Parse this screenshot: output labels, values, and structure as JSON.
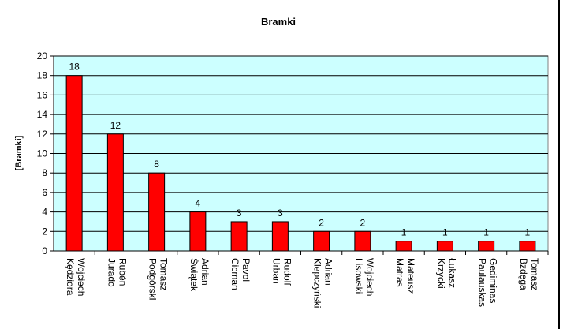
{
  "chart_data": {
    "type": "bar",
    "title": "Bramki",
    "ylabel": "[Bramki]",
    "xlabel": "",
    "ylim": [
      0,
      20
    ],
    "y_ticks": [
      0,
      2,
      4,
      6,
      8,
      10,
      12,
      14,
      16,
      18,
      20
    ],
    "grid": true,
    "legend": "none",
    "categories": [
      [
        "Wojciech",
        "Kędziora"
      ],
      [
        "Rubén",
        "Jurado"
      ],
      [
        "Tomasz",
        "Podgórski"
      ],
      [
        "Adrian",
        "Świątek"
      ],
      [
        "Pavol",
        "Cicman"
      ],
      [
        "Rudolf",
        "Urban"
      ],
      [
        "Adrian",
        "Klepczyński"
      ],
      [
        "Wojciech",
        "Lisowski"
      ],
      [
        "Mateusz",
        "Matras"
      ],
      [
        "Łukasz",
        "Krzycki"
      ],
      [
        "Gediminas",
        "Paulauskas"
      ],
      [
        "Tomasz",
        "Bzdęga"
      ]
    ],
    "values": [
      18,
      12,
      8,
      4,
      3,
      3,
      2,
      2,
      1,
      1,
      1,
      1
    ],
    "colors": {
      "plot_background": "#ccffff",
      "bar": "#ff0000",
      "bar_border": "#000000",
      "gridline": "#000000"
    }
  }
}
